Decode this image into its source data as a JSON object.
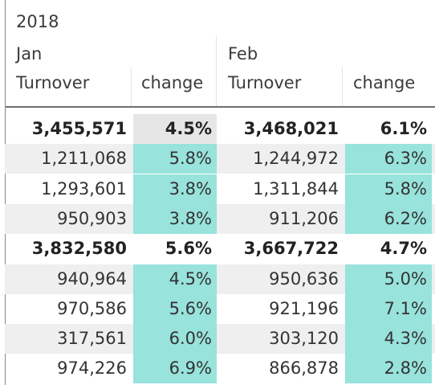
{
  "colors": {
    "highlight": "#98e3dc",
    "highlight_light": "#e6e6e6",
    "stripe": "#efefef"
  },
  "header": {
    "year": "2018",
    "months": [
      "Jan",
      "Feb"
    ],
    "columns": [
      "Turnover",
      "change",
      "Turnover",
      "change"
    ]
  },
  "rows": [
    {
      "jan_turnover": "3,455,571",
      "jan_change": "4.5%",
      "feb_turnover": "3,468,021",
      "feb_change": "6.1%",
      "total": true,
      "jan_hl": "light",
      "feb_hl": "none"
    },
    {
      "jan_turnover": "1,211,068",
      "jan_change": "5.8%",
      "feb_turnover": "1,244,972",
      "feb_change": "6.3%",
      "total": false,
      "jan_hl": "teal",
      "feb_hl": "teal"
    },
    {
      "jan_turnover": "1,293,601",
      "jan_change": "3.8%",
      "feb_turnover": "1,311,844",
      "feb_change": "5.8%",
      "total": false,
      "jan_hl": "teal",
      "feb_hl": "teal"
    },
    {
      "jan_turnover": "950,903",
      "jan_change": "3.8%",
      "feb_turnover": "911,206",
      "feb_change": "6.2%",
      "total": false,
      "jan_hl": "teal",
      "feb_hl": "teal"
    },
    {
      "jan_turnover": "3,832,580",
      "jan_change": "5.6%",
      "feb_turnover": "3,667,722",
      "feb_change": "4.7%",
      "total": true,
      "jan_hl": "none",
      "feb_hl": "none"
    },
    {
      "jan_turnover": "940,964",
      "jan_change": "4.5%",
      "feb_turnover": "950,636",
      "feb_change": "5.0%",
      "total": false,
      "jan_hl": "teal",
      "feb_hl": "teal"
    },
    {
      "jan_turnover": "970,586",
      "jan_change": "5.6%",
      "feb_turnover": "921,196",
      "feb_change": "7.1%",
      "total": false,
      "jan_hl": "teal",
      "feb_hl": "teal"
    },
    {
      "jan_turnover": "317,561",
      "jan_change": "6.0%",
      "feb_turnover": "303,120",
      "feb_change": "4.3%",
      "total": false,
      "jan_hl": "teal",
      "feb_hl": "teal"
    },
    {
      "jan_turnover": "974,226",
      "jan_change": "6.9%",
      "feb_turnover": "866,878",
      "feb_change": "2.8%",
      "total": false,
      "jan_hl": "teal",
      "feb_hl": "teal"
    }
  ]
}
